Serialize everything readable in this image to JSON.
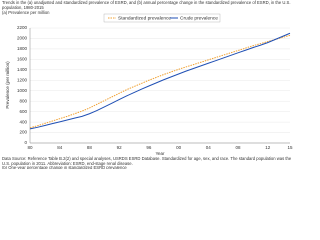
{
  "chart_data": {
    "type": "line",
    "title": "Trends in the (a) unadjusted and standardized prevalence of ESRD, and (b) annual percentage change in the standardized prevalence of ESRD, in the U.S. population, 1980-2015",
    "subtitle": "(a) Prevalence per million",
    "y_label": "Prevalence (per million)",
    "x_label": "Year",
    "categories": [
      "80",
      null,
      null,
      null,
      "84",
      null,
      null,
      null,
      "88",
      null,
      null,
      null,
      "92",
      null,
      null,
      null,
      "96",
      null,
      null,
      null,
      "00",
      null,
      null,
      null,
      "04",
      null,
      null,
      null,
      "08",
      null,
      null,
      null,
      "12",
      null,
      null,
      "15"
    ],
    "series": [
      {
        "name": "Standardized prevalence",
        "color": "#f0a030",
        "dash": true,
        "values": [
          290,
          330,
          375,
          420,
          465,
          510,
          560,
          610,
          670,
          740,
          810,
          880,
          950,
          1020,
          1080,
          1140,
          1200,
          1255,
          1310,
          1360,
          1410,
          1455,
          1500,
          1545,
          1590,
          1635,
          1680,
          1725,
          1770,
          1815,
          1860,
          1900,
          1940,
          1980,
          2020,
          2060
        ]
      },
      {
        "name": "Crude prevalence",
        "color": "#1f4fb4",
        "dash": false,
        "values": [
          270,
          300,
          335,
          370,
          405,
          440,
          475,
          510,
          560,
          620,
          690,
          760,
          830,
          900,
          965,
          1030,
          1090,
          1150,
          1210,
          1265,
          1320,
          1375,
          1425,
          1475,
          1525,
          1575,
          1625,
          1675,
          1725,
          1775,
          1825,
          1870,
          1920,
          1980,
          2040,
          2100
        ]
      }
    ],
    "ylim": [
      0,
      2200
    ],
    "yticks": [
      0,
      200,
      400,
      600,
      800,
      1000,
      1200,
      1400,
      1600,
      1800,
      2000,
      2200
    ],
    "grid": true,
    "legend": "top",
    "footnotes": [
      "Data Source: Reference Table B.2(2) and special analyses, USRDS ESRD Database. Standardized for age, sex, and race. The standard population was the U.S. population in 2011. Abbreviation: ESRD, end-stage renal disease.",
      "(b) One-year percentage change in standardized ESRD prevalence"
    ]
  }
}
